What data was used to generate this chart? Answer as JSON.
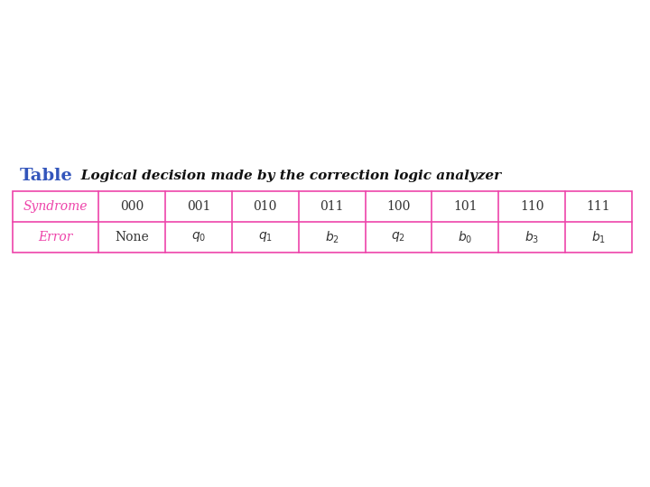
{
  "title_word": "Table",
  "title_word_color": "#3355bb",
  "title_desc": "   Logical decision made by the correction logic analyzer",
  "title_desc_color": "#111111",
  "table_border_color": "#ee44aa",
  "header_label_color": "#ee44aa",
  "row_labels": [
    "Syndrome",
    "Error"
  ],
  "col_headers": [
    "000",
    "001",
    "010",
    "011",
    "100",
    "101",
    "110",
    "111"
  ],
  "error_values": [
    "None",
    "$q_0$",
    "$q_1$",
    "$b_2$",
    "$q_2$",
    "$b_0$",
    "$b_3$",
    "$b_1$"
  ],
  "bg_color": "#ffffff",
  "cell_text_color": "#333333",
  "fig_width": 7.2,
  "fig_height": 5.4,
  "dpi": 100
}
